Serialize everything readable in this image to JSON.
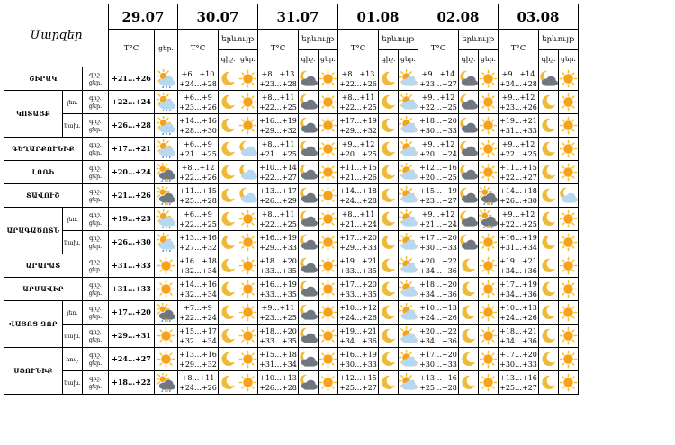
{
  "header": {
    "title": "Մարզեր",
    "dates": [
      "29.07",
      "30.07",
      "31.07",
      "01.08",
      "02.08",
      "03.08"
    ],
    "temp_label": "T°C",
    "phenom_label": "երևույթ",
    "day_label": "ցեր.",
    "night_label": "գիշ.",
    "day_lines": [
      "ցեր.",
      "ցեր."
    ],
    "night_lines": [
      "գիշ.",
      "գիշ."
    ]
  },
  "rows": [
    {
      "region": "ՇԻՐԱԿ",
      "sub": "",
      "label_lines": [
        "գիշ.",
        "ցեր."
      ],
      "d0": {
        "temp": [
          "+21…+26"
        ],
        "icons": [
          "cloud-sun-icon"
        ]
      },
      "d": [
        {
          "temp": [
            "+6…+10",
            "+24…+28"
          ],
          "icons": [
            "moon-icon",
            "sun-icon"
          ]
        },
        {
          "temp": [
            "+8…+13",
            "+23…+28"
          ],
          "icons": [
            "moon-cloud-icon",
            "sun-icon"
          ]
        },
        {
          "temp": [
            "+8…+13",
            "+22…+26"
          ],
          "icons": [
            "moon-icon",
            "sun-cloud-icon"
          ]
        },
        {
          "temp": [
            "+9…+14",
            "+23…+27"
          ],
          "icons": [
            "moon-cloud-icon",
            "sun-icon"
          ]
        },
        {
          "temp": [
            "+9…+14",
            "+24…+28"
          ],
          "icons": [
            "moon-cloud-icon",
            "sun-icon"
          ]
        }
      ]
    },
    {
      "region": "ԿՈՏԱՅՔ",
      "sub": "լեռ.",
      "label_lines": [
        "գիշ.",
        "ցեր."
      ],
      "d0": {
        "temp": [
          "+22…+24"
        ],
        "icons": [
          "cloud-sun-icon"
        ]
      },
      "d": [
        {
          "temp": [
            "+6…+9",
            "+23…+26"
          ],
          "icons": [
            "moon-icon",
            "sun-icon"
          ]
        },
        {
          "temp": [
            "+8…+11",
            "+22…+25"
          ],
          "icons": [
            "moon-cloud-icon",
            "sun-icon"
          ]
        },
        {
          "temp": [
            "+8…+11",
            "+22…+25"
          ],
          "icons": [
            "moon-icon",
            "sun-cloud-icon"
          ]
        },
        {
          "temp": [
            "+9…+12",
            "+22…+25"
          ],
          "icons": [
            "moon-cloud-icon",
            "sun-icon"
          ]
        },
        {
          "temp": [
            "+9…+12",
            "+23…+26"
          ],
          "icons": [
            "moon-icon",
            "sun-icon"
          ]
        }
      ]
    },
    {
      "region": "",
      "sub": "նախ.",
      "label_lines": [
        "գիշ.",
        "ցեր."
      ],
      "d0": {
        "temp": [
          "+26…+28"
        ],
        "icons": [
          "cloud-sun-icon"
        ]
      },
      "d": [
        {
          "temp": [
            "+14…+16",
            "+28…+30"
          ],
          "icons": [
            "moon-icon",
            "sun-icon"
          ]
        },
        {
          "temp": [
            "+16…+19",
            "+29…+32"
          ],
          "icons": [
            "moon-cloud-icon",
            "sun-icon"
          ]
        },
        {
          "temp": [
            "+17…+19",
            "+29…+32"
          ],
          "icons": [
            "moon-icon",
            "sun-cloud-icon"
          ]
        },
        {
          "temp": [
            "+18…+20",
            "+30…+33"
          ],
          "icons": [
            "moon-cloud-icon",
            "sun-icon"
          ]
        },
        {
          "temp": [
            "+19…+21",
            "+31…+33"
          ],
          "icons": [
            "moon-icon",
            "sun-icon"
          ]
        }
      ]
    },
    {
      "region": "ԳԵՂԱՐՔՈՒՆԻՔ",
      "sub": "",
      "label_lines": [
        "գիշ.",
        "ցեր."
      ],
      "d0": {
        "temp": [
          "+17…+21"
        ],
        "icons": [
          "cloud-sun-icon"
        ]
      },
      "d": [
        {
          "temp": [
            "+6…+9",
            "+21…+25"
          ],
          "icons": [
            "moon-icon",
            "cloud-icon"
          ]
        },
        {
          "temp": [
            "+8…+11",
            "+21…+25"
          ],
          "icons": [
            "moon-cloud-icon",
            "sun-icon"
          ]
        },
        {
          "temp": [
            "+9…+12",
            "+20…+25"
          ],
          "icons": [
            "moon-icon",
            "sun-cloud-icon"
          ]
        },
        {
          "temp": [
            "+9…+12",
            "+20…+24"
          ],
          "icons": [
            "moon-cloud-icon",
            "sun-icon"
          ]
        },
        {
          "temp": [
            "+9…+12",
            "+22…+25"
          ],
          "icons": [
            "moon-icon",
            "sun-icon"
          ]
        }
      ]
    },
    {
      "region": "ԼՈՌԻ",
      "sub": "",
      "label_lines": [
        "գիշ.",
        "ցեր."
      ],
      "d0": {
        "temp": [
          "+20…+24"
        ],
        "icons": [
          "cloud-rain-icon"
        ]
      },
      "d": [
        {
          "temp": [
            "+8…+12",
            "+22…+26"
          ],
          "icons": [
            "moon-icon",
            "cloud-icon"
          ]
        },
        {
          "temp": [
            "+10…+14",
            "+22…+27"
          ],
          "icons": [
            "moon-cloud-icon",
            "sun-icon"
          ]
        },
        {
          "temp": [
            "+11…+15",
            "+21…+26"
          ],
          "icons": [
            "moon-icon",
            "sun-cloud-icon"
          ]
        },
        {
          "temp": [
            "+12…+16",
            "+20…+25"
          ],
          "icons": [
            "moon-cloud-icon",
            "sun-icon"
          ]
        },
        {
          "temp": [
            "+11…+15",
            "+22…+27"
          ],
          "icons": [
            "moon-icon",
            "sun-icon"
          ]
        }
      ]
    },
    {
      "region": "ՏԱՎՈՒՇ",
      "sub": "",
      "label_lines": [
        "գիշ.",
        "ցեր."
      ],
      "d0": {
        "temp": [
          "+21…+26"
        ],
        "icons": [
          "cloud-rain-icon"
        ]
      },
      "d": [
        {
          "temp": [
            "+11…+15",
            "+25…+28"
          ],
          "icons": [
            "moon-icon",
            "cloud-icon"
          ]
        },
        {
          "temp": [
            "+13…+17",
            "+26…+29"
          ],
          "icons": [
            "moon-cloud-icon",
            "sun-icon"
          ]
        },
        {
          "temp": [
            "+14…+18",
            "+24…+28"
          ],
          "icons": [
            "moon-icon",
            "sun-cloud-icon"
          ]
        },
        {
          "temp": [
            "+15…+19",
            "+23…+27"
          ],
          "icons": [
            "moon-cloud-icon",
            "cloud-rain-icon"
          ]
        },
        {
          "temp": [
            "+14…+18",
            "+26…+30"
          ],
          "icons": [
            "moon-icon",
            "cloud-icon"
          ]
        }
      ]
    },
    {
      "region": "ԱՐԱԳԱԾՈՏՆ",
      "sub": "լեռ.",
      "label_lines": [
        "գիշ.",
        "ցեր."
      ],
      "d0": {
        "temp": [
          "+19…+23"
        ],
        "icons": [
          "cloud-sun-icon"
        ]
      },
      "d": [
        {
          "temp": [
            "+6…+9",
            "+22…+25"
          ],
          "icons": [
            "moon-icon",
            "sun-icon"
          ]
        },
        {
          "temp": [
            "+8…+11",
            "+22…+25"
          ],
          "icons": [
            "moon-cloud-icon",
            "sun-icon"
          ]
        },
        {
          "temp": [
            "+8…+11",
            "+21…+24"
          ],
          "icons": [
            "moon-icon",
            "sun-cloud-icon"
          ]
        },
        {
          "temp": [
            "+9…+12",
            "+21…+24"
          ],
          "icons": [
            "moon-cloud-icon",
            "cloud-rain-icon"
          ]
        },
        {
          "temp": [
            "+9…+12",
            "+22…+25"
          ],
          "icons": [
            "moon-icon",
            "sun-icon"
          ]
        }
      ]
    },
    {
      "region": "",
      "sub": "նախ.",
      "label_lines": [
        "գիշ.",
        "ցեր."
      ],
      "d0": {
        "temp": [
          "+26…+30"
        ],
        "icons": [
          "cloud-sun-icon"
        ]
      },
      "d": [
        {
          "temp": [
            "+13…+16",
            "+27…+32"
          ],
          "icons": [
            "moon-icon",
            "sun-icon"
          ]
        },
        {
          "temp": [
            "+16…+19",
            "+29…+33"
          ],
          "icons": [
            "moon-cloud-icon",
            "sun-icon"
          ]
        },
        {
          "temp": [
            "+17…+20",
            "+29…+33"
          ],
          "icons": [
            "moon-icon",
            "sun-cloud-icon"
          ]
        },
        {
          "temp": [
            "+17…+20",
            "+30…+33"
          ],
          "icons": [
            "moon-cloud-icon",
            "sun-icon"
          ]
        },
        {
          "temp": [
            "+16…+19",
            "+31…+34"
          ],
          "icons": [
            "moon-icon",
            "sun-icon"
          ]
        }
      ]
    },
    {
      "region": "ԱՐԱՐԱՏ",
      "sub": "",
      "label_lines": [
        "գիշ.",
        "ցեր."
      ],
      "d0": {
        "temp": [
          "+31…+33"
        ],
        "icons": [
          "sun-icon"
        ]
      },
      "d": [
        {
          "temp": [
            "+16…+18",
            "+32…+34"
          ],
          "icons": [
            "moon-icon",
            "sun-icon"
          ]
        },
        {
          "temp": [
            "+18…+20",
            "+33…+35"
          ],
          "icons": [
            "moon-cloud-icon",
            "sun-icon"
          ]
        },
        {
          "temp": [
            "+19…+21",
            "+33…+35"
          ],
          "icons": [
            "moon-icon",
            "sun-cloud-icon"
          ]
        },
        {
          "temp": [
            "+20…+22",
            "+34…+36"
          ],
          "icons": [
            "moon-icon",
            "sun-icon"
          ]
        },
        {
          "temp": [
            "+19…+21",
            "+34…+36"
          ],
          "icons": [
            "moon-icon",
            "sun-icon"
          ]
        }
      ]
    },
    {
      "region": "ԱՐՄԱՎԻՐ",
      "sub": "",
      "label_lines": [
        "գիշ.",
        "ցեր."
      ],
      "d0": {
        "temp": [
          "+31…+33"
        ],
        "icons": [
          "sun-icon"
        ]
      },
      "d": [
        {
          "temp": [
            "+14…+16",
            "+32…+34"
          ],
          "icons": [
            "moon-icon",
            "sun-icon"
          ]
        },
        {
          "temp": [
            "+16…+19",
            "+33…+35"
          ],
          "icons": [
            "moon-cloud-icon",
            "sun-icon"
          ]
        },
        {
          "temp": [
            "+17…+20",
            "+33…+35"
          ],
          "icons": [
            "moon-icon",
            "sun-cloud-icon"
          ]
        },
        {
          "temp": [
            "+18…+20",
            "+34…+36"
          ],
          "icons": [
            "moon-icon",
            "sun-icon"
          ]
        },
        {
          "temp": [
            "+17…+19",
            "+34…+36"
          ],
          "icons": [
            "moon-icon",
            "sun-icon"
          ]
        }
      ]
    },
    {
      "region": "ՎԱՅՈՑ ՁՈՐ",
      "sub": "լեռ.",
      "label_lines": [
        "գիշ.",
        "ցեր."
      ],
      "d0": {
        "temp": [
          "+17…+20"
        ],
        "icons": [
          "cloud-rain-icon"
        ]
      },
      "d": [
        {
          "temp": [
            "+7…+9",
            "+22…+24"
          ],
          "icons": [
            "moon-icon",
            "sun-icon"
          ]
        },
        {
          "temp": [
            "+9…+11",
            "+23…+25"
          ],
          "icons": [
            "moon-cloud-icon",
            "sun-icon"
          ]
        },
        {
          "temp": [
            "+10…+12",
            "+24…+26"
          ],
          "icons": [
            "moon-icon",
            "sun-cloud-icon"
          ]
        },
        {
          "temp": [
            "+10…+13",
            "+24…+26"
          ],
          "icons": [
            "moon-icon",
            "sun-icon"
          ]
        },
        {
          "temp": [
            "+10…+13",
            "+24…+26"
          ],
          "icons": [
            "moon-icon",
            "sun-icon"
          ]
        }
      ]
    },
    {
      "region": "",
      "sub": "նախ.",
      "label_lines": [
        "գիշ.",
        "ցեր."
      ],
      "d0": {
        "temp": [
          "+29…+31"
        ],
        "icons": [
          "sun-icon"
        ]
      },
      "d": [
        {
          "temp": [
            "+15…+17",
            "+32…+34"
          ],
          "icons": [
            "moon-icon",
            "sun-icon"
          ]
        },
        {
          "temp": [
            "+18…+20",
            "+33…+35"
          ],
          "icons": [
            "moon-cloud-icon",
            "sun-icon"
          ]
        },
        {
          "temp": [
            "+19…+21",
            "+34…+36"
          ],
          "icons": [
            "moon-icon",
            "sun-cloud-icon"
          ]
        },
        {
          "temp": [
            "+20…+22",
            "+34…+36"
          ],
          "icons": [
            "moon-icon",
            "sun-icon"
          ]
        },
        {
          "temp": [
            "+18…+21",
            "+34…+36"
          ],
          "icons": [
            "moon-icon",
            "sun-icon"
          ]
        }
      ]
    },
    {
      "region": "ՍՅՈՒՆԻՔ",
      "sub": "հով.",
      "label_lines": [
        "գիշ.",
        "ցեր."
      ],
      "d0": {
        "temp": [
          "+24…+27"
        ],
        "icons": [
          "sun-icon"
        ]
      },
      "d": [
        {
          "temp": [
            "+13…+16",
            "+29…+32"
          ],
          "icons": [
            "moon-icon",
            "sun-icon"
          ]
        },
        {
          "temp": [
            "+15…+18",
            "+31…+34"
          ],
          "icons": [
            "moon-cloud-icon",
            "sun-icon"
          ]
        },
        {
          "temp": [
            "+16…+19",
            "+30…+33"
          ],
          "icons": [
            "moon-icon",
            "sun-cloud-icon"
          ]
        },
        {
          "temp": [
            "+17…+20",
            "+30…+33"
          ],
          "icons": [
            "moon-icon",
            "sun-icon"
          ]
        },
        {
          "temp": [
            "+17…+20",
            "+30…+33"
          ],
          "icons": [
            "moon-icon",
            "sun-icon"
          ]
        }
      ]
    },
    {
      "region": "",
      "sub": "նախ.",
      "label_lines": [
        "գիշ.",
        "ցեր."
      ],
      "d0": {
        "temp": [
          "+18…+22"
        ],
        "icons": [
          "cloud-rain-icon"
        ]
      },
      "d": [
        {
          "temp": [
            "+8…+11",
            "+24…+26"
          ],
          "icons": [
            "moon-icon",
            "sun-icon"
          ]
        },
        {
          "temp": [
            "+10…+13",
            "+26…+28"
          ],
          "icons": [
            "moon-cloud-icon",
            "sun-icon"
          ]
        },
        {
          "temp": [
            "+12…+15",
            "+25…+27"
          ],
          "icons": [
            "moon-icon",
            "sun-cloud-icon"
          ]
        },
        {
          "temp": [
            "+13…+16",
            "+25…+28"
          ],
          "icons": [
            "moon-icon",
            "sun-icon"
          ]
        },
        {
          "temp": [
            "+13…+16",
            "+25…+27"
          ],
          "icons": [
            "moon-icon",
            "sun-icon"
          ]
        }
      ]
    }
  ],
  "colors": {
    "sun": "#f7a21b",
    "sun_ray": "#f2c230",
    "moon": "#f0b93a",
    "cloud_light": "#b8d8f0",
    "cloud_dark": "#6f7780",
    "rain": "#2a78c8"
  }
}
